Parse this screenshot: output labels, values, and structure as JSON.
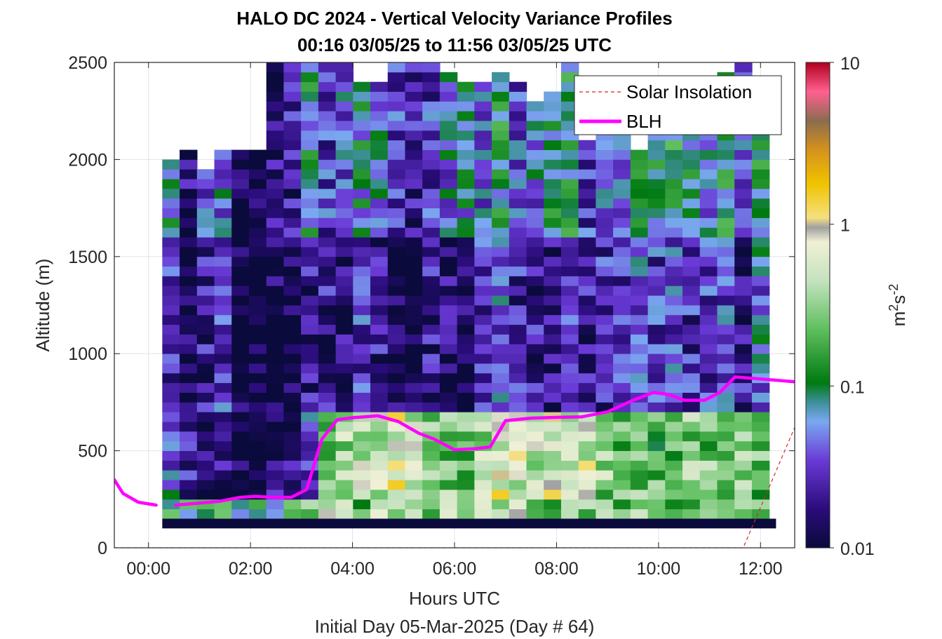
{
  "chart_data": {
    "type": "heatmap",
    "title": "HALO DC 2024 - Vertical Velocity Variance Profiles",
    "subtitle": "00:16 03/05/25 to 11:56 03/05/25  UTC",
    "xlabel": "Hours UTC",
    "xlabel2": "Initial Day 05-Mar-2025 (Day # 64)",
    "ylabel": "Altitude (m)",
    "xlim": [
      -0.67,
      12.67
    ],
    "ylim": [
      0,
      2500
    ],
    "x_ticks": [
      0,
      2,
      4,
      6,
      8,
      10,
      12
    ],
    "x_tick_labels": [
      "00:00",
      "02:00",
      "04:00",
      "06:00",
      "08:00",
      "10:00",
      "12:00"
    ],
    "y_ticks": [
      0,
      500,
      1000,
      1500,
      2000,
      2500
    ],
    "y_tick_labels": [
      "0",
      "500",
      "1000",
      "1500",
      "2000",
      "2500"
    ],
    "grid": true,
    "legend_position": "top-right",
    "colorbar": {
      "label_base": "m",
      "label_exp1": "2",
      "label_mid": "s",
      "label_exp2": "-2",
      "scale": "log",
      "range": [
        0.01,
        10
      ],
      "ticks": [
        0.01,
        0.1,
        1,
        10
      ],
      "tick_labels": [
        "0.01",
        "0.1",
        "1",
        "10"
      ]
    },
    "cell_x_range": [
      0.27,
      11.96
    ],
    "cell_alt_step": 50,
    "columns": [
      {
        "x": 0.27,
        "top": 2000,
        "surface": 0.15,
        "bl": 0.05,
        "mid": 0.025,
        "up": 0.08
      },
      {
        "x": 0.61,
        "top": 2050,
        "surface": 0.12,
        "bl": 0.02,
        "mid": 0.012,
        "up": 0.015
      },
      {
        "x": 0.95,
        "top": 1950,
        "surface": 0.2,
        "bl": 0.012,
        "mid": 0.02,
        "up": 0.035
      },
      {
        "x": 1.29,
        "top": 2050,
        "surface": 0.15,
        "bl": 0.02,
        "mid": 0.03,
        "up": 0.05
      },
      {
        "x": 1.63,
        "top": 2050,
        "surface": 0.1,
        "bl": 0.01,
        "mid": 0.01,
        "up": 0.01
      },
      {
        "x": 1.97,
        "top": 2050,
        "surface": 0.12,
        "bl": 0.01,
        "mid": 0.01,
        "up": 0.01
      },
      {
        "x": 2.31,
        "top": 2500,
        "surface": 0.1,
        "bl": 0.02,
        "mid": 0.012,
        "up": 0.015
      },
      {
        "x": 2.65,
        "top": 2500,
        "surface": 0.15,
        "bl": 0.015,
        "mid": 0.012,
        "up": 0.02
      },
      {
        "x": 2.99,
        "top": 2500,
        "surface": 0.2,
        "bl": 0.04,
        "mid": 0.02,
        "up": 0.08
      },
      {
        "x": 3.33,
        "top": 2500,
        "surface": 0.6,
        "bl": 0.25,
        "mid": 0.02,
        "up": 0.03
      },
      {
        "x": 3.67,
        "top": 2500,
        "surface": 0.3,
        "bl": 0.35,
        "mid": 0.015,
        "up": 0.04
      },
      {
        "x": 4.01,
        "top": 2400,
        "surface": 0.2,
        "bl": 0.5,
        "mid": 0.03,
        "up": 0.07
      },
      {
        "x": 4.35,
        "top": 2400,
        "surface": 0.4,
        "bl": 0.45,
        "mid": 0.02,
        "up": 0.05
      },
      {
        "x": 4.69,
        "top": 2500,
        "surface": 0.25,
        "bl": 0.7,
        "mid": 0.012,
        "up": 0.03
      },
      {
        "x": 5.03,
        "top": 2500,
        "surface": 0.3,
        "bl": 0.4,
        "mid": 0.01,
        "up": 0.02
      },
      {
        "x": 5.37,
        "top": 2500,
        "surface": 0.2,
        "bl": 0.3,
        "mid": 0.02,
        "up": 0.03
      },
      {
        "x": 5.71,
        "top": 2450,
        "surface": 0.35,
        "bl": 0.25,
        "mid": 0.015,
        "up": 0.05
      },
      {
        "x": 6.05,
        "top": 2400,
        "surface": 0.2,
        "bl": 0.2,
        "mid": 0.012,
        "up": 0.06
      },
      {
        "x": 6.39,
        "top": 2400,
        "surface": 0.3,
        "bl": 0.4,
        "mid": 0.03,
        "up": 0.04
      },
      {
        "x": 6.73,
        "top": 2450,
        "surface": 0.4,
        "bl": 0.7,
        "mid": 0.04,
        "up": 0.1
      },
      {
        "x": 7.07,
        "top": 2400,
        "surface": 0.5,
        "bl": 0.6,
        "mid": 0.025,
        "up": 0.04
      },
      {
        "x": 7.41,
        "top": 2300,
        "surface": 0.3,
        "bl": 0.5,
        "mid": 0.02,
        "up": 0.05
      },
      {
        "x": 7.75,
        "top": 2350,
        "surface": 0.25,
        "bl": 0.65,
        "mid": 0.015,
        "up": 0.08
      },
      {
        "x": 8.09,
        "top": 2500,
        "surface": 0.35,
        "bl": 0.5,
        "mid": 0.03,
        "up": 0.1
      },
      {
        "x": 8.43,
        "top": 2100,
        "surface": 0.3,
        "bl": 0.55,
        "mid": 0.02,
        "up": 0.03
      },
      {
        "x": 8.77,
        "top": 2150,
        "surface": 0.25,
        "bl": 0.3,
        "mid": 0.025,
        "up": 0.04
      },
      {
        "x": 9.11,
        "top": 2150,
        "surface": 0.2,
        "bl": 0.2,
        "mid": 0.03,
        "up": 0.05
      },
      {
        "x": 9.45,
        "top": 2050,
        "surface": 0.3,
        "bl": 0.25,
        "mid": 0.04,
        "up": 0.08
      },
      {
        "x": 9.79,
        "top": 2150,
        "surface": 0.35,
        "bl": 0.2,
        "mid": 0.03,
        "up": 0.1
      },
      {
        "x": 10.13,
        "top": 2150,
        "surface": 0.25,
        "bl": 0.2,
        "mid": 0.04,
        "up": 0.1
      },
      {
        "x": 10.47,
        "top": 2400,
        "surface": 0.2,
        "bl": 0.3,
        "mid": 0.025,
        "up": 0.08
      },
      {
        "x": 10.81,
        "top": 2400,
        "surface": 0.3,
        "bl": 0.25,
        "mid": 0.03,
        "up": 0.06
      },
      {
        "x": 11.15,
        "top": 2450,
        "surface": 0.3,
        "bl": 0.2,
        "mid": 0.04,
        "up": 0.1
      },
      {
        "x": 11.49,
        "top": 2500,
        "surface": 0.4,
        "bl": 0.25,
        "mid": 0.02,
        "up": 0.05
      },
      {
        "x": 11.83,
        "top": 2150,
        "surface": 0.25,
        "bl": 0.2,
        "mid": 0.05,
        "up": 0.1
      }
    ],
    "surface_layer_value": 0.01,
    "series": [
      {
        "name": "Solar Insolation",
        "style": "dashed",
        "color": "#d62728",
        "x": [
          -0.67,
          11.66,
          12.67
        ],
        "y": [
          0,
          0,
          620
        ]
      },
      {
        "name": "BLH",
        "style": "solid",
        "color": "#ff00ff",
        "segments": [
          {
            "x": [
              -0.67,
              -0.5,
              -0.2,
              0.15
            ],
            "y": [
              350,
              280,
              235,
              220
            ]
          },
          {
            "x": [
              0.53,
              1.0,
              1.4,
              1.8,
              2.1,
              2.4,
              2.8,
              3.1,
              3.4,
              3.7,
              4.0,
              4.5,
              4.9,
              5.3,
              5.6,
              6.0,
              6.4,
              6.7,
              7.0,
              7.5,
              8.0,
              8.5,
              9.0,
              9.5,
              9.9,
              10.2,
              10.5,
              10.9,
              11.2,
              11.5,
              12.0,
              12.67
            ],
            "y": [
              220,
              230,
              240,
              260,
              265,
              260,
              260,
              300,
              560,
              660,
              670,
              680,
              650,
              590,
              560,
              505,
              510,
              520,
              655,
              668,
              672,
              675,
              700,
              760,
              800,
              790,
              760,
              760,
              800,
              880,
              870,
              855
            ]
          }
        ]
      }
    ]
  }
}
